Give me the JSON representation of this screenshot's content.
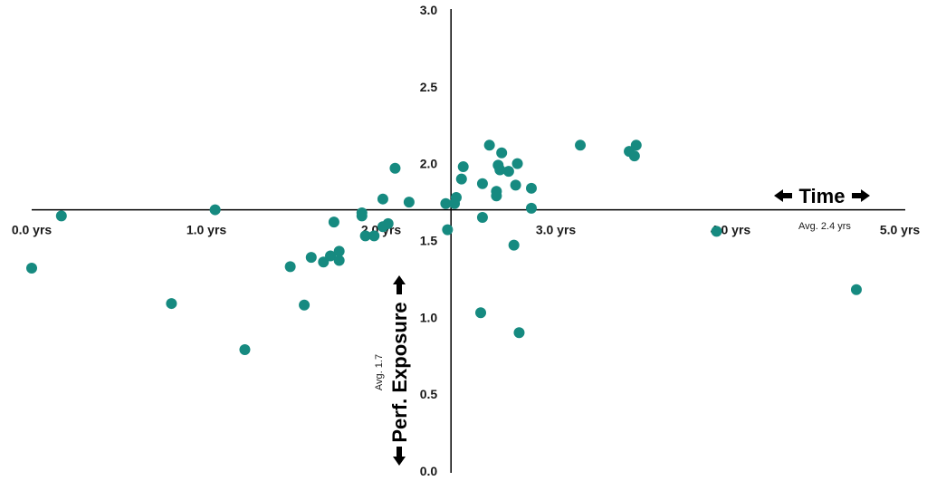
{
  "chart_data": {
    "type": "scatter",
    "xlabel": "Time",
    "ylabel": "Perf. Exposure",
    "x_avg_label": "Avg. 2.4 yrs",
    "y_avg_label": "Avg. 1.7",
    "x_ticks": [
      "0.0 yrs",
      "1.0 yrs",
      "2.0 yrs",
      "3.0 yrs",
      "4.0 yrs",
      "5.0 yrs"
    ],
    "y_ticks": [
      "0.0",
      "0.5",
      "1.0",
      "1.5",
      "2.0",
      "2.5",
      "3.0"
    ],
    "xlim": [
      0,
      5
    ],
    "ylim": [
      0,
      3
    ],
    "x_axis_crosses_y_at": 1.7,
    "y_axis_crosses_x_at": 2.4,
    "marker_color": "#168a80",
    "points": [
      {
        "x": 0.0,
        "y": 1.32
      },
      {
        "x": 0.17,
        "y": 1.66
      },
      {
        "x": 0.8,
        "y": 1.09
      },
      {
        "x": 1.05,
        "y": 1.7
      },
      {
        "x": 1.22,
        "y": 0.79
      },
      {
        "x": 1.48,
        "y": 1.33
      },
      {
        "x": 1.56,
        "y": 1.08
      },
      {
        "x": 1.6,
        "y": 1.39
      },
      {
        "x": 1.67,
        "y": 1.36
      },
      {
        "x": 1.71,
        "y": 1.4
      },
      {
        "x": 1.73,
        "y": 1.62
      },
      {
        "x": 1.76,
        "y": 1.43
      },
      {
        "x": 1.76,
        "y": 1.37
      },
      {
        "x": 1.89,
        "y": 1.68
      },
      {
        "x": 1.89,
        "y": 1.66
      },
      {
        "x": 1.91,
        "y": 1.53
      },
      {
        "x": 1.96,
        "y": 1.53
      },
      {
        "x": 2.01,
        "y": 1.77
      },
      {
        "x": 2.01,
        "y": 1.59
      },
      {
        "x": 2.04,
        "y": 1.61
      },
      {
        "x": 2.08,
        "y": 1.97
      },
      {
        "x": 2.16,
        "y": 1.75
      },
      {
        "x": 2.38,
        "y": 1.57
      },
      {
        "x": 2.37,
        "y": 1.74
      },
      {
        "x": 2.42,
        "y": 1.74
      },
      {
        "x": 2.43,
        "y": 1.78
      },
      {
        "x": 2.46,
        "y": 1.9
      },
      {
        "x": 2.47,
        "y": 1.98
      },
      {
        "x": 2.57,
        "y": 1.03
      },
      {
        "x": 2.58,
        "y": 1.87
      },
      {
        "x": 2.62,
        "y": 2.12
      },
      {
        "x": 2.58,
        "y": 1.65
      },
      {
        "x": 2.66,
        "y": 1.82
      },
      {
        "x": 2.66,
        "y": 1.79
      },
      {
        "x": 2.67,
        "y": 1.99
      },
      {
        "x": 2.68,
        "y": 1.96
      },
      {
        "x": 2.69,
        "y": 2.07
      },
      {
        "x": 2.73,
        "y": 1.95
      },
      {
        "x": 2.77,
        "y": 1.86
      },
      {
        "x": 2.78,
        "y": 2.0
      },
      {
        "x": 2.76,
        "y": 1.47
      },
      {
        "x": 2.79,
        "y": 0.9
      },
      {
        "x": 2.86,
        "y": 1.84
      },
      {
        "x": 2.86,
        "y": 1.71
      },
      {
        "x": 3.14,
        "y": 2.12
      },
      {
        "x": 3.42,
        "y": 2.08
      },
      {
        "x": 3.45,
        "y": 2.05
      },
      {
        "x": 3.46,
        "y": 2.12
      },
      {
        "x": 3.92,
        "y": 1.56
      },
      {
        "x": 4.72,
        "y": 1.18
      }
    ]
  }
}
